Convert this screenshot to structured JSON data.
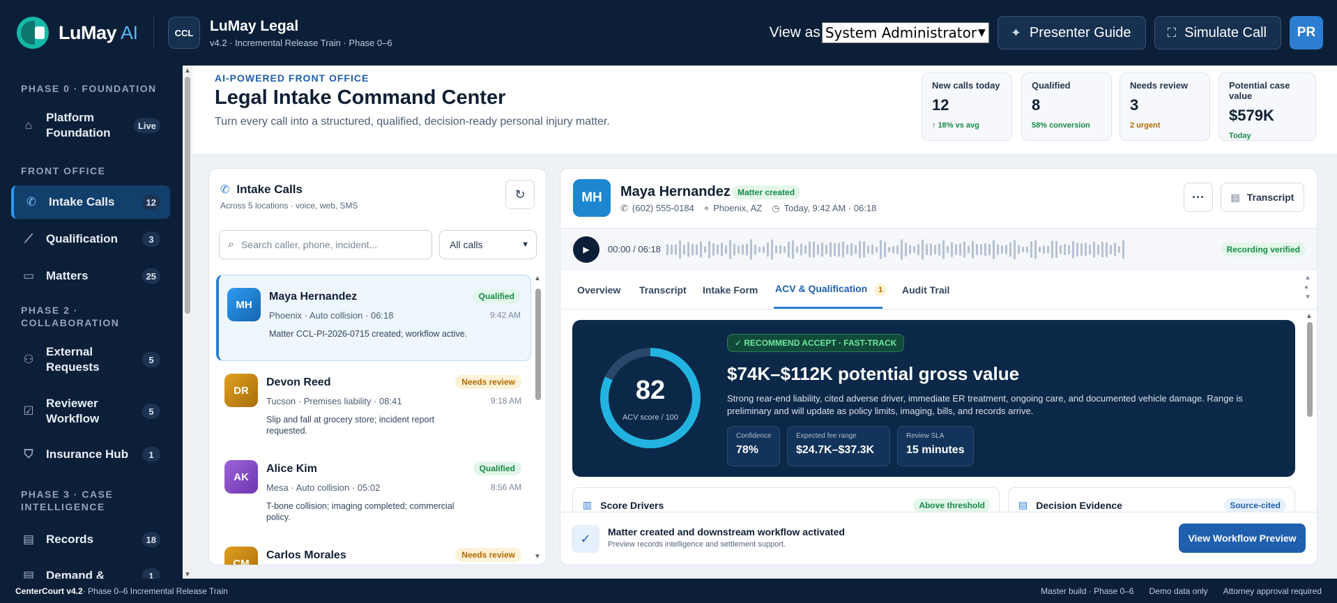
{
  "topbar": {
    "brand": "LuMay",
    "brand_ai": "AI",
    "firm_initials": "CCL",
    "firm_name": "LuMay Legal",
    "firm_sub": "v4.2 · Incremental Release Train · Phase 0–6",
    "view_as_label": "View as",
    "role_selected": "System Administrator",
    "presenter_guide": "Presenter Guide",
    "simulate_call": "Simulate Call",
    "user_initials": "PR"
  },
  "sidebar": {
    "sections": [
      {
        "title": "PHASE 0 · FOUNDATION",
        "items": [
          {
            "label": "Platform Foundation",
            "count": "Live",
            "icon": "home-icon"
          }
        ]
      },
      {
        "title": "FRONT OFFICE",
        "items": [
          {
            "label": "Intake Calls",
            "count": "12",
            "icon": "phone-icon",
            "active": true
          },
          {
            "label": "Qualification",
            "count": "3",
            "icon": "chart-icon"
          },
          {
            "label": "Matters",
            "count": "25",
            "icon": "briefcase-icon"
          }
        ]
      },
      {
        "title": "PHASE 2 · COLLABORATION",
        "items": [
          {
            "label": "External Requests",
            "count": "5",
            "icon": "users-icon"
          },
          {
            "label": "Reviewer Workflow",
            "count": "5",
            "icon": "checklist-icon"
          },
          {
            "label": "Insurance Hub",
            "count": "1",
            "icon": "shield-icon"
          }
        ]
      },
      {
        "title": "PHASE 3 · CASE INTELLIGENCE",
        "items": [
          {
            "label": "Records",
            "count": "18",
            "icon": "document-icon"
          },
          {
            "label": "Demand &",
            "count": "1",
            "icon": "document-icon"
          }
        ]
      }
    ]
  },
  "header": {
    "eyebrow": "AI-POWERED FRONT OFFICE",
    "title": "Legal Intake Command Center",
    "subtitle": "Turn every call into a structured, qualified, decision-ready personal injury matter.",
    "kpis": [
      {
        "label": "New calls today",
        "value": "12",
        "sub": "↑ 18% vs avg",
        "tone": "green"
      },
      {
        "label": "Qualified",
        "value": "8",
        "sub": "58% conversion",
        "tone": "green"
      },
      {
        "label": "Needs review",
        "value": "3",
        "sub": "2 urgent",
        "tone": "amber"
      },
      {
        "label": "Potential case value",
        "value": "$579K",
        "sub": "Today",
        "tone": "green"
      }
    ]
  },
  "calls": {
    "title": "Intake Calls",
    "subtitle": "Across 5 locations · voice, web, SMS",
    "search_placeholder": "Search caller, phone, incident...",
    "filter": "All calls",
    "items": [
      {
        "initials": "MH",
        "name": "Maya Hernandez",
        "meta": "Phoenix · Auto collision · 06:18",
        "note": "Matter CCL-PI-2026-0715 created; workflow active.",
        "status": "Qualified",
        "time": "9:42 AM",
        "color": "#1d86cf",
        "active": true
      },
      {
        "initials": "DR",
        "name": "Devon Reed",
        "meta": "Tucson · Premises liability · 08:41",
        "note": "Slip and fall at grocery store; incident report requested.",
        "status": "Needs review",
        "time": "9:18 AM",
        "color": "#c88a14"
      },
      {
        "initials": "AK",
        "name": "Alice Kim",
        "meta": "Mesa · Auto collision · 05:02",
        "note": "T-bone collision; imaging completed; commercial policy.",
        "status": "Qualified",
        "time": "8:56 AM",
        "color": "#8b4fc8"
      },
      {
        "initials": "CM",
        "name": "Carlos Morales",
        "meta": "",
        "note": "",
        "status": "Needs review",
        "time": "",
        "color": "#c88a14"
      }
    ]
  },
  "detail": {
    "initials": "MH",
    "name": "Maya Hernandez",
    "badge": "Matter created",
    "phone": "(602) 555-0184",
    "location": "Phoenix, AZ",
    "when": "Today, 9:42 AM · 06:18",
    "transcript_btn": "Transcript",
    "audio_time": "00:00 / 06:18",
    "recording": "Recording verified",
    "tabs": [
      "Overview",
      "Transcript",
      "Intake Form",
      "ACV & Qualification",
      "Audit Trail"
    ],
    "tab_count": "1",
    "acv": {
      "score": 82,
      "score_label": "ACV score / 100",
      "recommendation": "✓ RECOMMEND ACCEPT · FAST-TRACK",
      "value": "$74K–$112K potential gross value",
      "description": "Strong rear-end liability, cited adverse driver, immediate ER treatment, ongoing care, and documented vehicle damage. Range is preliminary and will update as policy limits, imaging, bills, and records arrive.",
      "stats": [
        {
          "label": "Confidence",
          "value": "78%"
        },
        {
          "label": "Expected fee range",
          "value": "$24.7K–$37.3K"
        },
        {
          "label": "Review SLA",
          "value": "15 minutes"
        }
      ]
    },
    "cards": [
      {
        "title": "Score Drivers",
        "badge": "Above threshold"
      },
      {
        "title": "Decision Evidence",
        "badge": "Source-cited"
      }
    ],
    "banner": {
      "title": "Matter created and downstream workflow activated",
      "subtitle": "Preview records intelligence and settlement support.",
      "button": "View Workflow Preview"
    }
  },
  "footer": {
    "product": "CenterCourt v4.2",
    "product_sub": " · Phase 0–6 Incremental Release Train",
    "right": [
      "Master build · Phase 0–6",
      "Demo data only",
      "Attorney approval required"
    ]
  }
}
